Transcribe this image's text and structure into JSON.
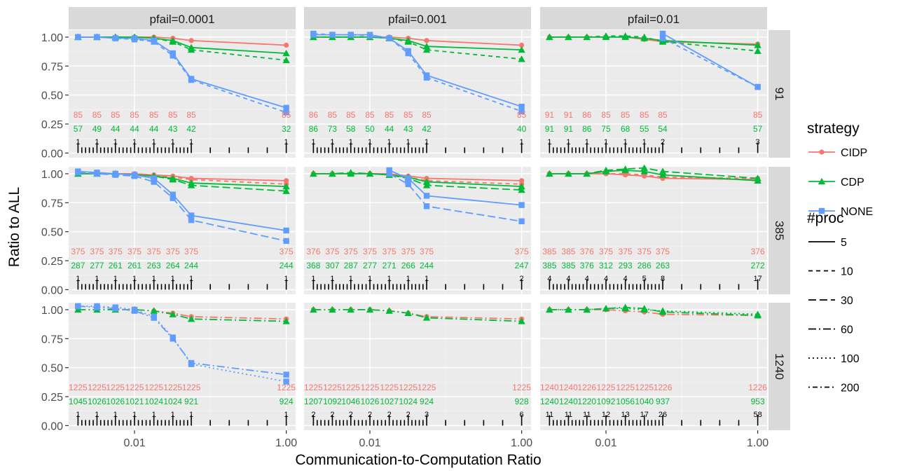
{
  "chart_data": {
    "type": "line",
    "xlabel": "Communication-to-Computation Ratio",
    "ylabel": "Ratio to ALL",
    "x_scale": "log10",
    "x": [
      0.0018,
      0.0032,
      0.0056,
      0.01,
      0.018,
      0.032,
      0.056,
      1.0
    ],
    "x_ticks": [
      0.01,
      1.0
    ],
    "x_tick_labels": [
      "0.01",
      "1.00"
    ],
    "ylim": [
      -0.04,
      1.06
    ],
    "y_ticks": [
      0.0,
      0.25,
      0.5,
      0.75,
      1.0
    ],
    "y_tick_labels": [
      "0.00",
      "0.25",
      "0.50",
      "0.75",
      "1.00"
    ],
    "grid": true,
    "col_labels": [
      "pfail=0.0001",
      "pfail=0.001",
      "pfail=0.01"
    ],
    "row_labels": [
      "91",
      "385",
      "1240"
    ],
    "strategies": [
      {
        "name": "CIDP",
        "color": "#F8766D",
        "marker": "circle"
      },
      {
        "name": "CDP",
        "color": "#00BA38",
        "marker": "triangle"
      },
      {
        "name": "NONE",
        "color": "#619CFF",
        "marker": "square"
      }
    ],
    "legend_strategy_title": "strategy",
    "legend_proc_title": "#proc",
    "procs": [
      {
        "name": "5",
        "dash": ""
      },
      {
        "name": "10",
        "dash": "6,5"
      },
      {
        "name": "30",
        "dash": "11,5"
      },
      {
        "name": "60",
        "dash": "11,4,2,4"
      },
      {
        "name": "100",
        "dash": "2,4"
      },
      {
        "name": "200",
        "dash": "2,4,7,4"
      }
    ],
    "legend_position": "right",
    "panels": [
      {
        "row": 0,
        "col": 0,
        "series": [
          {
            "strategy": "CIDP",
            "proc": "5",
            "values": [
              1.0,
              1.0,
              1.0,
              1.0,
              1.0,
              0.99,
              0.97,
              0.93
            ]
          },
          {
            "strategy": "CDP",
            "proc": "5",
            "values": [
              1.0,
              1.0,
              1.0,
              1.0,
              0.99,
              0.97,
              0.91,
              0.86
            ]
          },
          {
            "strategy": "CDP",
            "proc": "10",
            "values": [
              1.0,
              1.0,
              1.0,
              1.0,
              0.99,
              0.96,
              0.89,
              0.8
            ]
          },
          {
            "strategy": "NONE",
            "proc": "5",
            "values": [
              1.0,
              1.0,
              0.99,
              0.99,
              0.97,
              0.86,
              0.64,
              0.39
            ]
          },
          {
            "strategy": "NONE",
            "proc": "10",
            "values": [
              1.0,
              1.0,
              0.99,
              0.98,
              0.96,
              0.84,
              0.63,
              0.35
            ]
          }
        ],
        "labels": {
          "red": [
            "85",
            "85",
            "85",
            "85",
            "85",
            "85",
            "85",
            "85"
          ],
          "green": [
            "57",
            "49",
            "44",
            "44",
            "44",
            "43",
            "42",
            "32"
          ],
          "black": [
            "1",
            "1",
            "1",
            "1",
            "1",
            "1",
            "1",
            "1"
          ]
        }
      },
      {
        "row": 0,
        "col": 1,
        "series": [
          {
            "strategy": "CIDP",
            "proc": "5",
            "values": [
              1.0,
              1.0,
              1.0,
              1.0,
              1.0,
              0.99,
              0.97,
              0.93
            ]
          },
          {
            "strategy": "CDP",
            "proc": "5",
            "values": [
              1.0,
              1.0,
              1.0,
              1.0,
              0.99,
              0.97,
              0.92,
              0.89
            ]
          },
          {
            "strategy": "CDP",
            "proc": "10",
            "values": [
              1.0,
              1.0,
              1.0,
              1.0,
              0.99,
              0.96,
              0.89,
              0.81
            ]
          },
          {
            "strategy": "NONE",
            "proc": "5",
            "values": [
              1.02,
              1.02,
              1.02,
              1.02,
              0.99,
              0.88,
              0.67,
              0.4
            ]
          },
          {
            "strategy": "NONE",
            "proc": "10",
            "values": [
              1.03,
              1.02,
              1.02,
              1.01,
              0.99,
              0.86,
              0.65,
              0.36
            ]
          }
        ],
        "labels": {
          "red": [
            "86",
            "85",
            "85",
            "85",
            "85",
            "85",
            "85",
            "85"
          ],
          "green": [
            "86",
            "73",
            "58",
            "50",
            "44",
            "43",
            "42",
            "40"
          ],
          "black": [
            "1",
            "1",
            "1",
            "1",
            "1",
            "1",
            "1",
            "1"
          ]
        }
      },
      {
        "row": 0,
        "col": 2,
        "series": [
          {
            "strategy": "CIDP",
            "proc": "5",
            "values": [
              1.0,
              1.0,
              1.0,
              1.0,
              1.0,
              0.98,
              0.96,
              0.94
            ]
          },
          {
            "strategy": "CDP",
            "proc": "5",
            "values": [
              1.0,
              1.0,
              1.0,
              1.0,
              1.0,
              0.99,
              0.97,
              0.93
            ]
          },
          {
            "strategy": "CDP",
            "proc": "10",
            "values": [
              1.0,
              1.0,
              1.0,
              1.01,
              1.01,
              1.0,
              0.96,
              0.88
            ]
          },
          {
            "strategy": "NONE",
            "proc": "5",
            "values": [
              null,
              null,
              null,
              null,
              null,
              null,
              1.03,
              0.57
            ]
          },
          {
            "strategy": "NONE",
            "proc": "10",
            "values": [
              null,
              null,
              null,
              null,
              null,
              null,
              0.99,
              0.57
            ]
          }
        ],
        "labels": {
          "red": [
            "91",
            "91",
            "86",
            "85",
            "85",
            "85",
            "85",
            "85"
          ],
          "green": [
            "91",
            "91",
            "86",
            "75",
            "68",
            "55",
            "54",
            "57"
          ],
          "black": [
            "1",
            "1",
            "1",
            "1",
            "1",
            "1",
            "2",
            "3"
          ]
        }
      },
      {
        "row": 1,
        "col": 0,
        "series": [
          {
            "strategy": "CIDP",
            "proc": "5",
            "values": [
              1.0,
              1.0,
              1.0,
              1.0,
              0.99,
              0.98,
              0.96,
              0.94
            ]
          },
          {
            "strategy": "CIDP",
            "proc": "10",
            "values": [
              1.0,
              1.0,
              1.0,
              0.99,
              0.98,
              0.97,
              0.95,
              0.91
            ]
          },
          {
            "strategy": "CDP",
            "proc": "5",
            "values": [
              1.0,
              1.0,
              1.0,
              0.99,
              0.98,
              0.96,
              0.92,
              0.89
            ]
          },
          {
            "strategy": "CDP",
            "proc": "30",
            "values": [
              1.0,
              1.0,
              1.0,
              0.99,
              0.98,
              0.95,
              0.9,
              0.85
            ]
          },
          {
            "strategy": "NONE",
            "proc": "5",
            "values": [
              1.02,
              1.01,
              1.0,
              0.99,
              0.96,
              0.82,
              0.64,
              0.51
            ]
          },
          {
            "strategy": "NONE",
            "proc": "30",
            "values": [
              1.01,
              1.0,
              0.99,
              0.98,
              0.93,
              0.79,
              0.6,
              0.42
            ]
          }
        ],
        "labels": {
          "red": [
            "375",
            "375",
            "375",
            "375",
            "375",
            "375",
            "375",
            "375"
          ],
          "green": [
            "287",
            "277",
            "261",
            "261",
            "263",
            "264",
            "244",
            "244"
          ],
          "black": [
            "1",
            "1",
            "1",
            "1",
            "1",
            "1",
            "1",
            "1"
          ]
        }
      },
      {
        "row": 1,
        "col": 1,
        "series": [
          {
            "strategy": "CIDP",
            "proc": "5",
            "values": [
              1.0,
              1.0,
              1.0,
              1.0,
              1.0,
              0.98,
              0.96,
              0.94
            ]
          },
          {
            "strategy": "CIDP",
            "proc": "10",
            "values": [
              1.0,
              1.0,
              1.0,
              1.0,
              0.99,
              0.97,
              0.94,
              0.91
            ]
          },
          {
            "strategy": "CDP",
            "proc": "5",
            "values": [
              1.0,
              1.0,
              1.0,
              1.0,
              0.99,
              0.97,
              0.93,
              0.89
            ]
          },
          {
            "strategy": "CDP",
            "proc": "30",
            "values": [
              1.0,
              1.0,
              1.01,
              1.0,
              0.99,
              0.96,
              0.9,
              0.86
            ]
          },
          {
            "strategy": "NONE",
            "proc": "5",
            "values": [
              null,
              null,
              null,
              null,
              1.03,
              0.96,
              0.81,
              0.73
            ]
          },
          {
            "strategy": "NONE",
            "proc": "30",
            "values": [
              null,
              null,
              null,
              null,
              1.0,
              0.91,
              0.72,
              0.59
            ]
          }
        ],
        "labels": {
          "red": [
            "376",
            "375",
            "375",
            "375",
            "375",
            "375",
            "375",
            "375"
          ],
          "green": [
            "368",
            "307",
            "287",
            "277",
            "271",
            "266",
            "244",
            "247"
          ],
          "black": [
            "1",
            "1",
            "1",
            "1",
            "1",
            "1",
            "1",
            "2"
          ]
        }
      },
      {
        "row": 1,
        "col": 2,
        "series": [
          {
            "strategy": "CIDP",
            "proc": "5",
            "values": [
              1.0,
              1.0,
              1.0,
              1.0,
              0.99,
              0.98,
              0.96,
              0.95
            ]
          },
          {
            "strategy": "CIDP",
            "proc": "10",
            "values": [
              1.0,
              1.0,
              1.0,
              1.0,
              1.0,
              0.99,
              0.97,
              0.96
            ]
          },
          {
            "strategy": "CDP",
            "proc": "5",
            "values": [
              1.0,
              1.0,
              1.0,
              1.02,
              1.03,
              1.02,
              0.99,
              0.94
            ]
          },
          {
            "strategy": "CDP",
            "proc": "30",
            "values": [
              1.0,
              1.0,
              1.0,
              1.03,
              1.04,
              1.05,
              1.02,
              0.96
            ]
          }
        ],
        "labels": {
          "red": [
            "385",
            "385",
            "376",
            "375",
            "375",
            "375",
            "375",
            "376"
          ],
          "green": [
            "385",
            "385",
            "376",
            "312",
            "293",
            "286",
            "263",
            "272"
          ],
          "black": [
            "4",
            "4",
            "4",
            "4",
            "4",
            "5",
            "8",
            "17"
          ]
        }
      },
      {
        "row": 2,
        "col": 0,
        "series": [
          {
            "strategy": "CIDP",
            "proc": "60",
            "values": [
              1.0,
              1.0,
              1.0,
              1.0,
              0.99,
              0.97,
              0.94,
              0.92
            ]
          },
          {
            "strategy": "CDP",
            "proc": "60",
            "values": [
              1.0,
              1.0,
              1.0,
              1.0,
              0.99,
              0.96,
              0.92,
              0.9
            ]
          },
          {
            "strategy": "NONE",
            "proc": "60",
            "values": [
              1.03,
              1.02,
              1.01,
              0.99,
              0.93,
              0.75,
              0.54,
              0.44
            ]
          },
          {
            "strategy": "NONE",
            "proc": "100",
            "values": [
              1.03,
              1.03,
              1.02,
              1.0,
              0.94,
              0.76,
              0.53,
              0.38
            ]
          }
        ],
        "labels": {
          "red": [
            "1225",
            "1225",
            "1225",
            "1225",
            "1225",
            "1225",
            "1225",
            "1225"
          ],
          "green": [
            "1045",
            "1026",
            "1026",
            "1021",
            "1024",
            "1024",
            "921",
            "924"
          ],
          "black": [
            "1",
            "1",
            "1",
            "1",
            "1",
            "1",
            "1",
            "1"
          ]
        }
      },
      {
        "row": 2,
        "col": 1,
        "series": [
          {
            "strategy": "CIDP",
            "proc": "60",
            "values": [
              1.0,
              1.0,
              1.0,
              1.0,
              0.99,
              0.97,
              0.94,
              0.92
            ]
          },
          {
            "strategy": "CDP",
            "proc": "60",
            "values": [
              1.0,
              1.0,
              1.0,
              1.0,
              0.99,
              0.97,
              0.93,
              0.9
            ]
          }
        ],
        "labels": {
          "red": [
            "1225",
            "1225",
            "1225",
            "1225",
            "1225",
            "1225",
            "1225",
            "1225"
          ],
          "green": [
            "1207",
            "1092",
            "1046",
            "1026",
            "1027",
            "1024",
            "924",
            "928"
          ],
          "black": [
            "2",
            "2",
            "2",
            "2",
            "2",
            "2",
            "3",
            "6"
          ]
        }
      },
      {
        "row": 2,
        "col": 2,
        "series": [
          {
            "strategy": "CIDP",
            "proc": "60",
            "values": [
              1.0,
              1.0,
              1.0,
              1.0,
              0.99,
              0.98,
              0.96,
              0.95
            ]
          },
          {
            "strategy": "CDP",
            "proc": "60",
            "values": [
              1.0,
              1.0,
              1.0,
              1.01,
              1.02,
              1.01,
              0.98,
              0.95
            ]
          },
          {
            "strategy": "CDP",
            "proc": "100",
            "values": [
              1.0,
              1.0,
              1.0,
              1.01,
              1.01,
              1.0,
              0.99,
              0.96
            ]
          }
        ],
        "labels": {
          "red": [
            "1240",
            "1240",
            "1226",
            "1225",
            "1225",
            "1225",
            "1226",
            "1226"
          ],
          "green": [
            "1240",
            "1240",
            "1220",
            "1092",
            "1056",
            "1040",
            "937",
            "953"
          ],
          "black": [
            "11",
            "11",
            "11",
            "12",
            "13",
            "17",
            "26",
            "58"
          ]
        }
      }
    ]
  }
}
